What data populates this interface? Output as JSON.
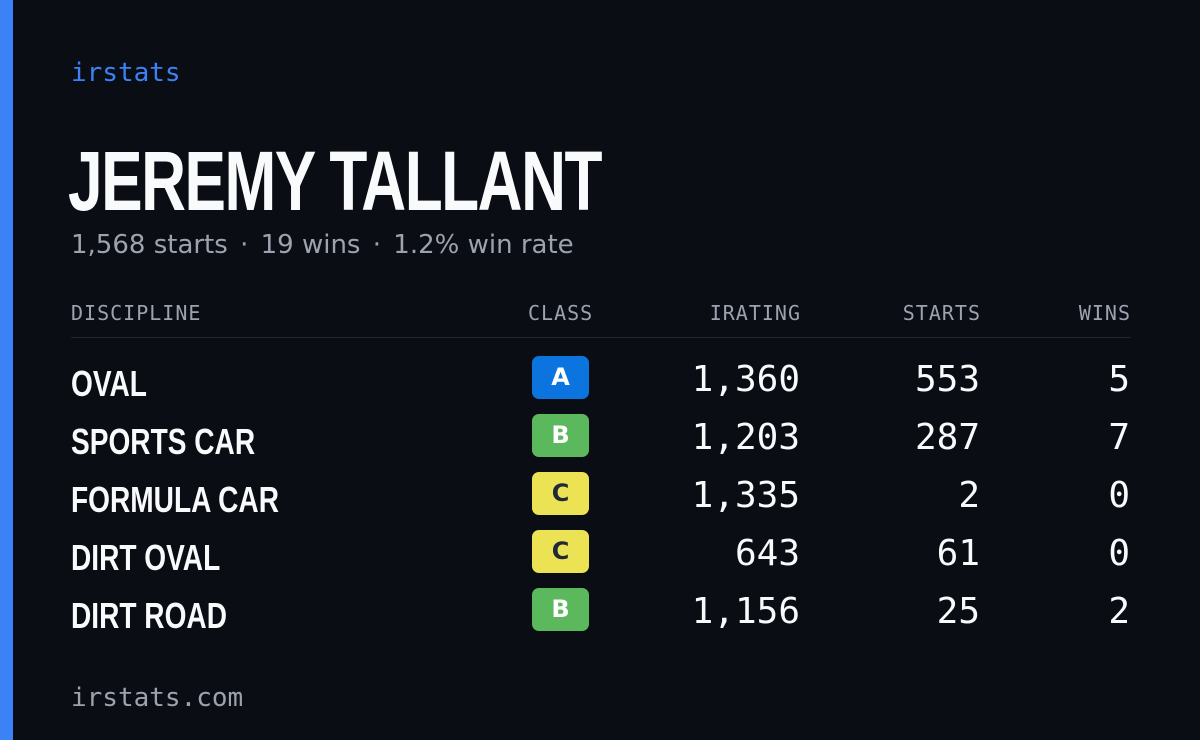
{
  "brand": "irstats",
  "driver": {
    "name": "JEREMY TALLANT"
  },
  "summary": {
    "starts": "1,568 starts",
    "wins": "19 wins",
    "win_rate": "1.2% win rate",
    "separator": "·"
  },
  "table": {
    "headers": {
      "discipline": "DISCIPLINE",
      "class": "CLASS",
      "irating": "IRATING",
      "starts": "STARTS",
      "wins": "WINS"
    },
    "rows": [
      {
        "discipline": "OVAL",
        "class": "A",
        "irating": "1,360",
        "starts": "553",
        "wins": "5"
      },
      {
        "discipline": "SPORTS CAR",
        "class": "B",
        "irating": "1,203",
        "starts": "287",
        "wins": "7"
      },
      {
        "discipline": "FORMULA CAR",
        "class": "C",
        "irating": "1,335",
        "starts": "2",
        "wins": "0"
      },
      {
        "discipline": "DIRT OVAL",
        "class": "C",
        "irating": "643",
        "starts": "61",
        "wins": "0"
      },
      {
        "discipline": "DIRT ROAD",
        "class": "B",
        "irating": "1,156",
        "starts": "25",
        "wins": "2"
      }
    ]
  },
  "footer": {
    "domain": "irstats.com"
  },
  "colors": {
    "accent": "#3b82f6",
    "background": "#0a0d14",
    "class_a": "#0b74de",
    "class_b": "#5cb85c",
    "class_c": "#ece354"
  }
}
